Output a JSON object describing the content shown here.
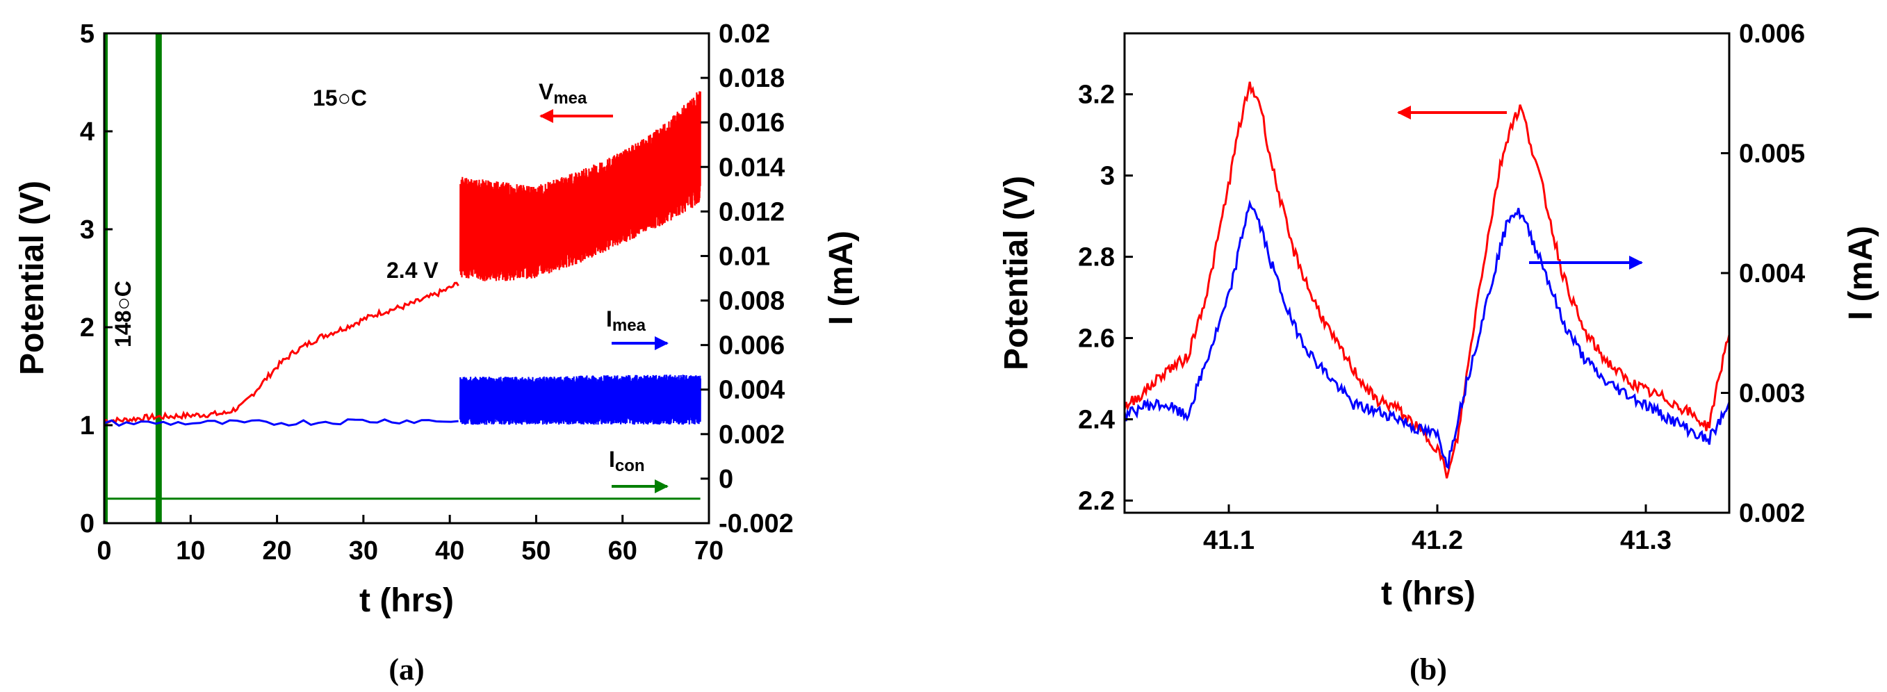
{
  "chart_data": [
    {
      "type": "line",
      "caption": "(a)",
      "xlabel": "t (hrs)",
      "ylabel": "Potential (V)",
      "y2label": "I (mA)",
      "xlim": [
        0,
        70
      ],
      "ylim": [
        0,
        5
      ],
      "y2lim": [
        -0.002,
        0.02
      ],
      "x_ticks": [
        0,
        10,
        20,
        30,
        40,
        50,
        60,
        70
      ],
      "y_ticks": [
        0,
        1,
        2,
        3,
        4,
        5
      ],
      "y2_ticks": [
        -0.002,
        0,
        0.002,
        0.004,
        0.006,
        0.008,
        0.01,
        0.012,
        0.014,
        0.016,
        0.018,
        0.02
      ],
      "x_tick_labels": [
        "0",
        "10",
        "20",
        "30",
        "40",
        "50",
        "60",
        "70"
      ],
      "y_tick_labels": [
        "0",
        "1",
        "2",
        "3",
        "4",
        "5"
      ],
      "y2_tick_labels": [
        "-0.002",
        "0",
        "0.002",
        "0.004",
        "0.006",
        "0.008",
        "0.01",
        "0.012",
        "0.014",
        "0.016",
        "0.018",
        "0.02"
      ],
      "series": [
        {
          "name": "Vmea",
          "color": "#ff0000",
          "axis": "left",
          "x": [
            0,
            2,
            5,
            10,
            14,
            16,
            18,
            20,
            22,
            25,
            28,
            30,
            32,
            35,
            38,
            40,
            41
          ],
          "y": [
            1.05,
            1.05,
            1.08,
            1.1,
            1.12,
            1.2,
            1.4,
            1.6,
            1.75,
            1.9,
            2.0,
            2.08,
            2.15,
            2.22,
            2.32,
            2.4,
            2.45
          ]
        },
        {
          "name": "Vmea noisy band",
          "color": "#ff0000",
          "axis": "left",
          "style": "noisy",
          "x": [
            41.2,
            45,
            50,
            55,
            60,
            65,
            69
          ],
          "y_low": [
            2.45,
            2.4,
            2.45,
            2.6,
            2.8,
            3.0,
            3.2
          ],
          "y_high": [
            3.6,
            3.55,
            3.5,
            3.65,
            3.85,
            4.15,
            4.5
          ]
        },
        {
          "name": "Imea",
          "color": "#0000ff",
          "axis": "right",
          "x": [
            0,
            10,
            20,
            30,
            41
          ],
          "y": [
            0.0025,
            0.0025,
            0.0025,
            0.0026,
            0.0026
          ]
        },
        {
          "name": "Imea noisy band",
          "color": "#0000ff",
          "axis": "right",
          "style": "noisy",
          "x": [
            41.2,
            50,
            60,
            69
          ],
          "y_low": [
            0.0023,
            0.0023,
            0.0023,
            0.0023
          ],
          "y_high": [
            0.0047,
            0.0047,
            0.0048,
            0.0048
          ]
        },
        {
          "name": "Icon",
          "color": "#007f00",
          "axis": "right",
          "x": [
            0,
            69
          ],
          "y": [
            -0.0009,
            -0.0009
          ]
        }
      ],
      "vertical_markers": [
        {
          "x": 0.2,
          "color": "#007f00"
        },
        {
          "x": 6.3,
          "color": "#007f00"
        }
      ],
      "legend": [
        {
          "text": "V",
          "sub": "mea",
          "color": "#ff0000",
          "direction": "left"
        },
        {
          "text": "I",
          "sub": "mea",
          "color": "#0000ff",
          "direction": "right"
        },
        {
          "text": "I",
          "sub": "con",
          "color": "#007f00",
          "direction": "right"
        }
      ],
      "annotations": [
        "15○C",
        "2.4 V",
        "148○C"
      ]
    },
    {
      "type": "line",
      "caption": "(b)",
      "xlabel": "t (hrs)",
      "ylabel": "Potential (V)",
      "y2label": "I (mA)",
      "xlim": [
        41.05,
        41.34
      ],
      "ylim": [
        2.17,
        3.35
      ],
      "y2lim": [
        0.002,
        0.006
      ],
      "x_ticks": [
        41.1,
        41.2,
        41.3
      ],
      "y_ticks": [
        2.2,
        2.4,
        2.6,
        2.8,
        3.0,
        3.2
      ],
      "y2_ticks": [
        0.002,
        0.003,
        0.004,
        0.005,
        0.006
      ],
      "x_tick_labels": [
        "41.1",
        "41.2",
        "41.3"
      ],
      "y_tick_labels": [
        "2.2",
        "2.4",
        "2.6",
        "2.8",
        "3",
        "3.2"
      ],
      "y2_tick_labels": [
        "0.002",
        "0.003",
        "0.004",
        "0.005",
        "0.006"
      ],
      "series": [
        {
          "name": "Vmea",
          "color": "#ff0000",
          "axis": "left",
          "x": [
            41.05,
            41.06,
            41.07,
            41.08,
            41.09,
            41.1,
            41.105,
            41.11,
            41.115,
            41.12,
            41.13,
            41.14,
            41.15,
            41.16,
            41.17,
            41.18,
            41.19,
            41.2,
            41.205,
            41.21,
            41.22,
            41.23,
            41.235,
            41.24,
            41.25,
            41.26,
            41.27,
            41.28,
            41.29,
            41.3,
            41.31,
            41.32,
            41.33,
            41.34
          ],
          "y": [
            2.43,
            2.47,
            2.52,
            2.55,
            2.72,
            2.98,
            3.12,
            3.22,
            3.18,
            3.04,
            2.83,
            2.7,
            2.6,
            2.52,
            2.45,
            2.43,
            2.38,
            2.33,
            2.26,
            2.36,
            2.72,
            3.02,
            3.12,
            3.17,
            2.98,
            2.76,
            2.62,
            2.55,
            2.5,
            2.47,
            2.45,
            2.42,
            2.38,
            2.62
          ]
        },
        {
          "name": "Imea",
          "color": "#0000ff",
          "axis": "right",
          "x": [
            41.05,
            41.06,
            41.07,
            41.08,
            41.09,
            41.1,
            41.105,
            41.11,
            41.115,
            41.12,
            41.13,
            41.14,
            41.15,
            41.16,
            41.17,
            41.18,
            41.19,
            41.2,
            41.205,
            41.21,
            41.22,
            41.23,
            41.235,
            41.24,
            41.25,
            41.26,
            41.27,
            41.28,
            41.29,
            41.3,
            41.31,
            41.32,
            41.33,
            41.34
          ],
          "y": [
            0.0028,
            0.0029,
            0.0029,
            0.0028,
            0.0033,
            0.0038,
            0.0042,
            0.0046,
            0.0044,
            0.0041,
            0.0036,
            0.0033,
            0.0031,
            0.0029,
            0.00285,
            0.0028,
            0.0027,
            0.00265,
            0.0024,
            0.0028,
            0.0035,
            0.0042,
            0.0045,
            0.0045,
            0.0041,
            0.0036,
            0.0033,
            0.0031,
            0.003,
            0.0029,
            0.0028,
            0.0027,
            0.0026,
            0.0029
          ]
        }
      ],
      "legend_arrows": [
        {
          "color": "#ff0000",
          "direction": "left"
        },
        {
          "color": "#0000ff",
          "direction": "right"
        }
      ]
    }
  ]
}
